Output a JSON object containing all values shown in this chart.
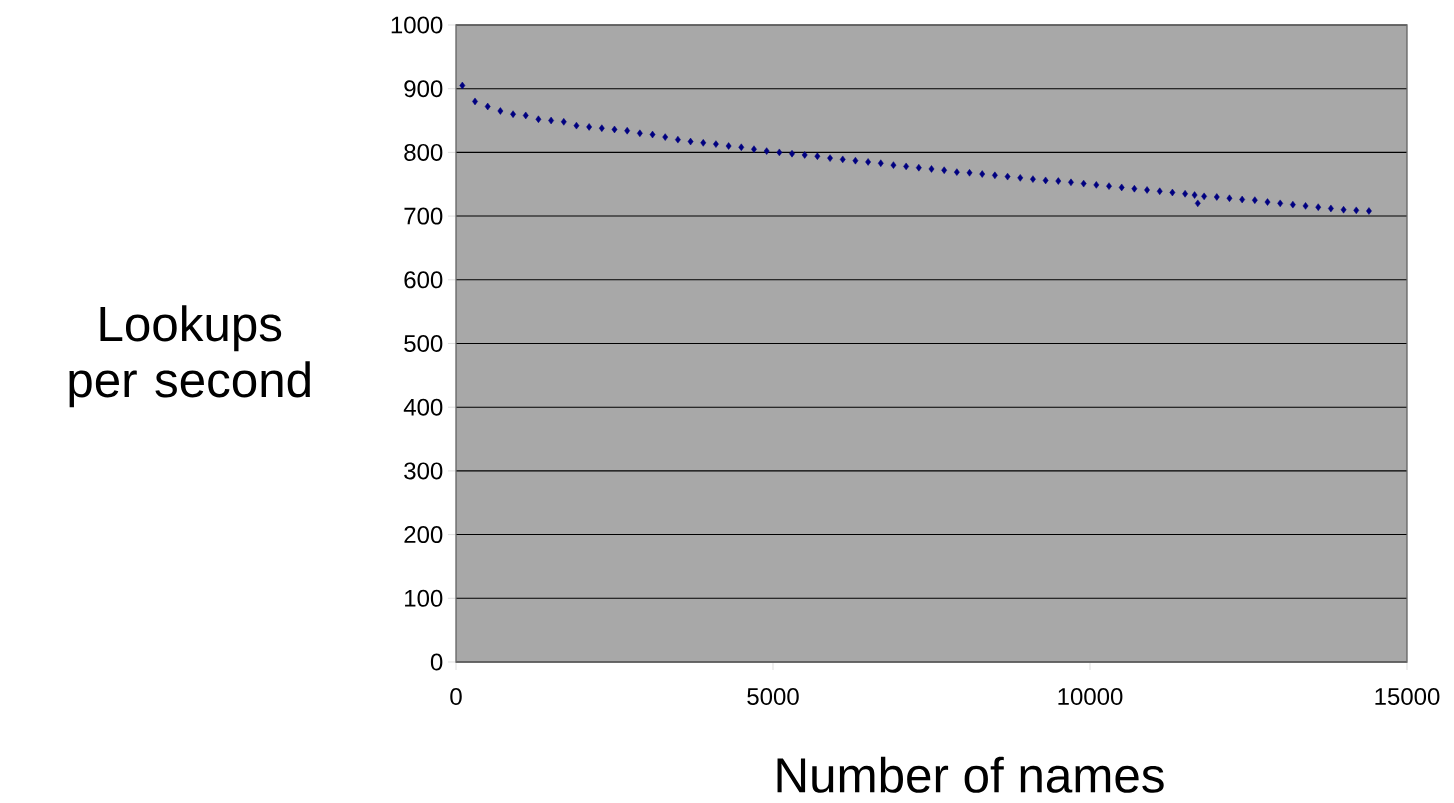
{
  "chart_data": {
    "type": "scatter",
    "xlabel": "Number of names",
    "ylabel": "Lookups per second",
    "x": [
      100,
      300,
      500,
      700,
      900,
      1100,
      1300,
      1500,
      1700,
      1900,
      2100,
      2300,
      2500,
      2700,
      2900,
      3100,
      3300,
      3500,
      3700,
      3900,
      4100,
      4300,
      4500,
      4700,
      4900,
      5100,
      5300,
      5500,
      5700,
      5900,
      6100,
      6300,
      6500,
      6700,
      6900,
      7100,
      7300,
      7500,
      7700,
      7900,
      8100,
      8300,
      8500,
      8700,
      8900,
      9100,
      9300,
      9500,
      9700,
      9900,
      10100,
      10300,
      10500,
      10700,
      10900,
      11100,
      11300,
      11500,
      11650,
      11700,
      11800,
      12000,
      12200,
      12400,
      12600,
      12800,
      13000,
      13200,
      13400,
      13600,
      13800,
      14000,
      14200,
      14400
    ],
    "values": [
      905,
      880,
      872,
      865,
      860,
      858,
      852,
      850,
      848,
      842,
      840,
      838,
      836,
      834,
      830,
      828,
      824,
      820,
      817,
      815,
      813,
      810,
      808,
      805,
      802,
      800,
      798,
      796,
      794,
      791,
      789,
      787,
      785,
      783,
      780,
      778,
      776,
      774,
      772,
      769,
      768,
      766,
      764,
      762,
      760,
      758,
      756,
      755,
      753,
      751,
      749,
      747,
      745,
      743,
      741,
      739,
      737,
      735,
      733,
      720,
      731,
      730,
      728,
      726,
      725,
      722,
      720,
      718,
      716,
      714,
      712,
      710,
      709,
      708
    ],
    "color": "#000080",
    "marker": "diamond",
    "grid": "y",
    "xlim": [
      0,
      15000
    ],
    "ylim": [
      0,
      1000
    ],
    "xticks": [
      0,
      5000,
      10000,
      15000
    ],
    "yticks": [
      0,
      100,
      200,
      300,
      400,
      500,
      600,
      700,
      800,
      900,
      1000
    ]
  }
}
